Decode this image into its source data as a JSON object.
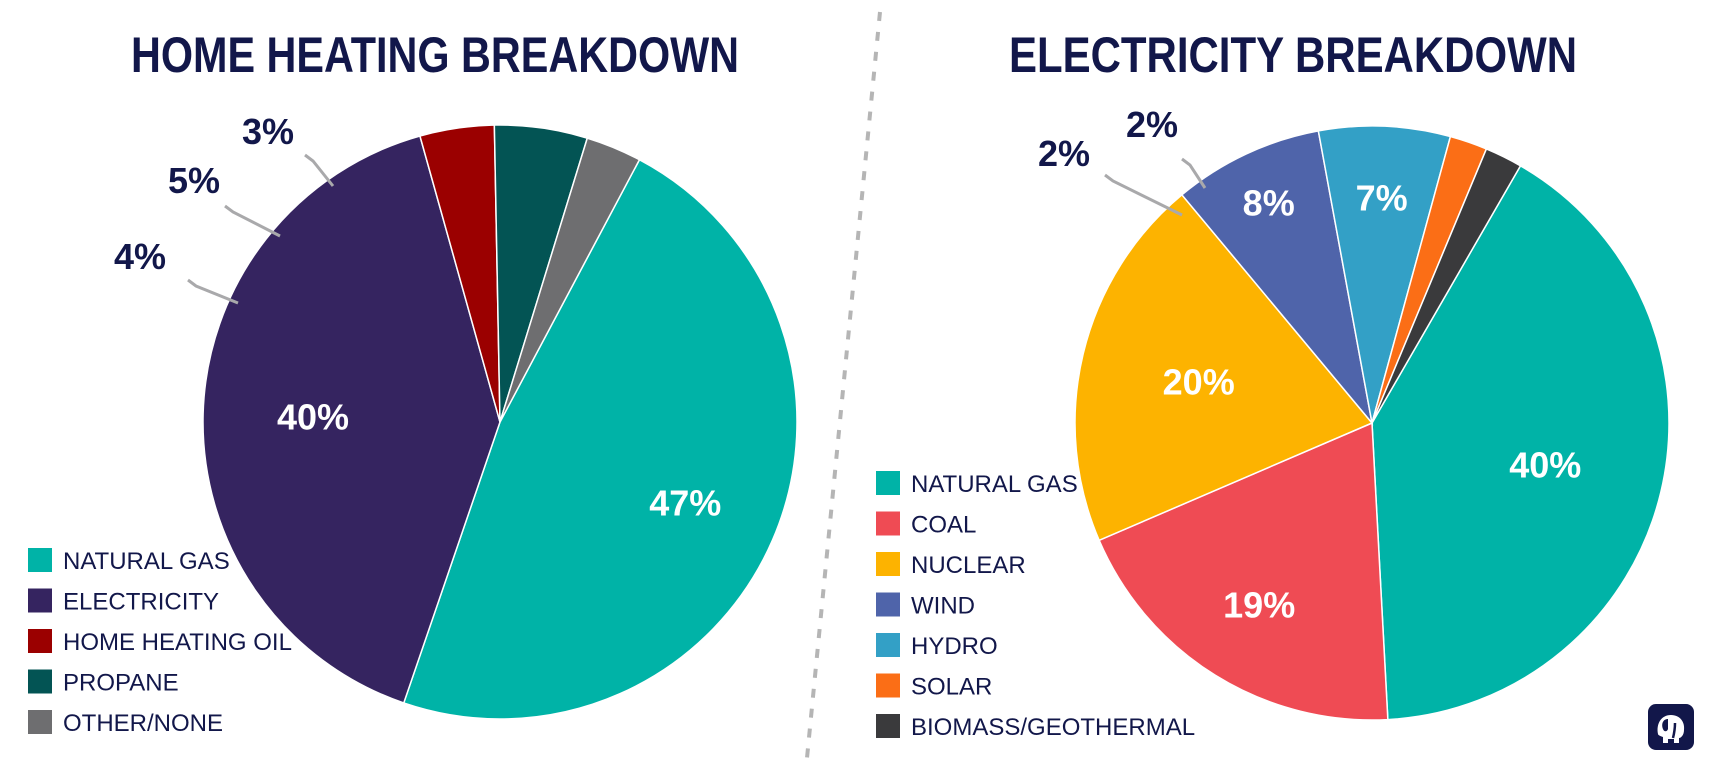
{
  "chart_data": [
    {
      "type": "pie",
      "title": "HOME HEATING BREAKDOWN",
      "labels": [
        "NATURAL GAS",
        "ELECTRICITY",
        "HOME HEATING OIL",
        "PROPANE",
        "OTHER/NONE"
      ],
      "values": [
        47,
        40,
        4,
        5,
        3
      ],
      "value_labels": [
        "47%",
        "40%",
        "4%",
        "5%",
        "3%"
      ],
      "colors": [
        "#00b3a7",
        "#352460",
        "#9b0000",
        "#035454",
        "#6e6e70"
      ],
      "legend_position": "bottom-left"
    },
    {
      "type": "pie",
      "title": "ELECTRICITY BREAKDOWN",
      "labels": [
        "NATURAL GAS",
        "COAL",
        "NUCLEAR",
        "WIND",
        "HYDRO",
        "SOLAR",
        "BIOMASS/GEOTHERMAL"
      ],
      "values": [
        40,
        19,
        20,
        8,
        7,
        2,
        2
      ],
      "value_labels": [
        "40%",
        "19%",
        "20%",
        "8%",
        "7%",
        "2%",
        "2%"
      ],
      "colors": [
        "#00b3a7",
        "#ef4b54",
        "#fdb300",
        "#4f64aa",
        "#33a0c6",
        "#fb6e16",
        "#3a3a3c"
      ],
      "legend_position": "left"
    }
  ]
}
